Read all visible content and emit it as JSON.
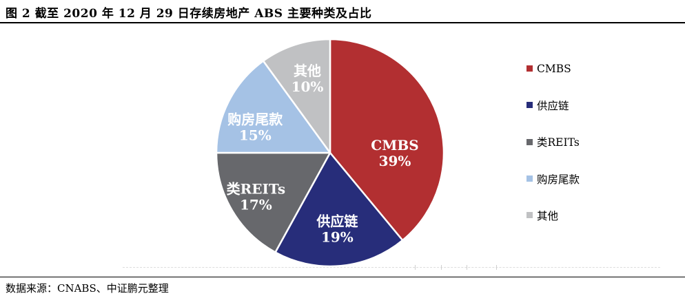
{
  "header": {
    "title": "图 2 截至 2020 年 12 月 29 日存续房地产 ABS 主要种类及占比"
  },
  "footer": {
    "source": "数据来源：CNABS、中证鹏元整理"
  },
  "chart_data": {
    "type": "pie",
    "title": "截至 2020 年 12 月 29 日存续房地产 ABS 主要种类及占比",
    "categories": [
      "CMBS",
      "供应链",
      "类REITs",
      "购房尾款",
      "其他"
    ],
    "values": [
      39,
      19,
      17,
      15,
      10
    ],
    "unit": "%",
    "colors": [
      "#b22f31",
      "#272d7a",
      "#67686c",
      "#a5c2e5",
      "#c0c1c3"
    ],
    "slice_label_color": "#ffffff",
    "start_angle_deg": 0,
    "direction": "clockwise",
    "slice_border_color": "#ffffff",
    "legend_position": "right",
    "legend": [
      "CMBS",
      "供应链",
      "类REITs",
      "购房尾款",
      "其他"
    ]
  }
}
